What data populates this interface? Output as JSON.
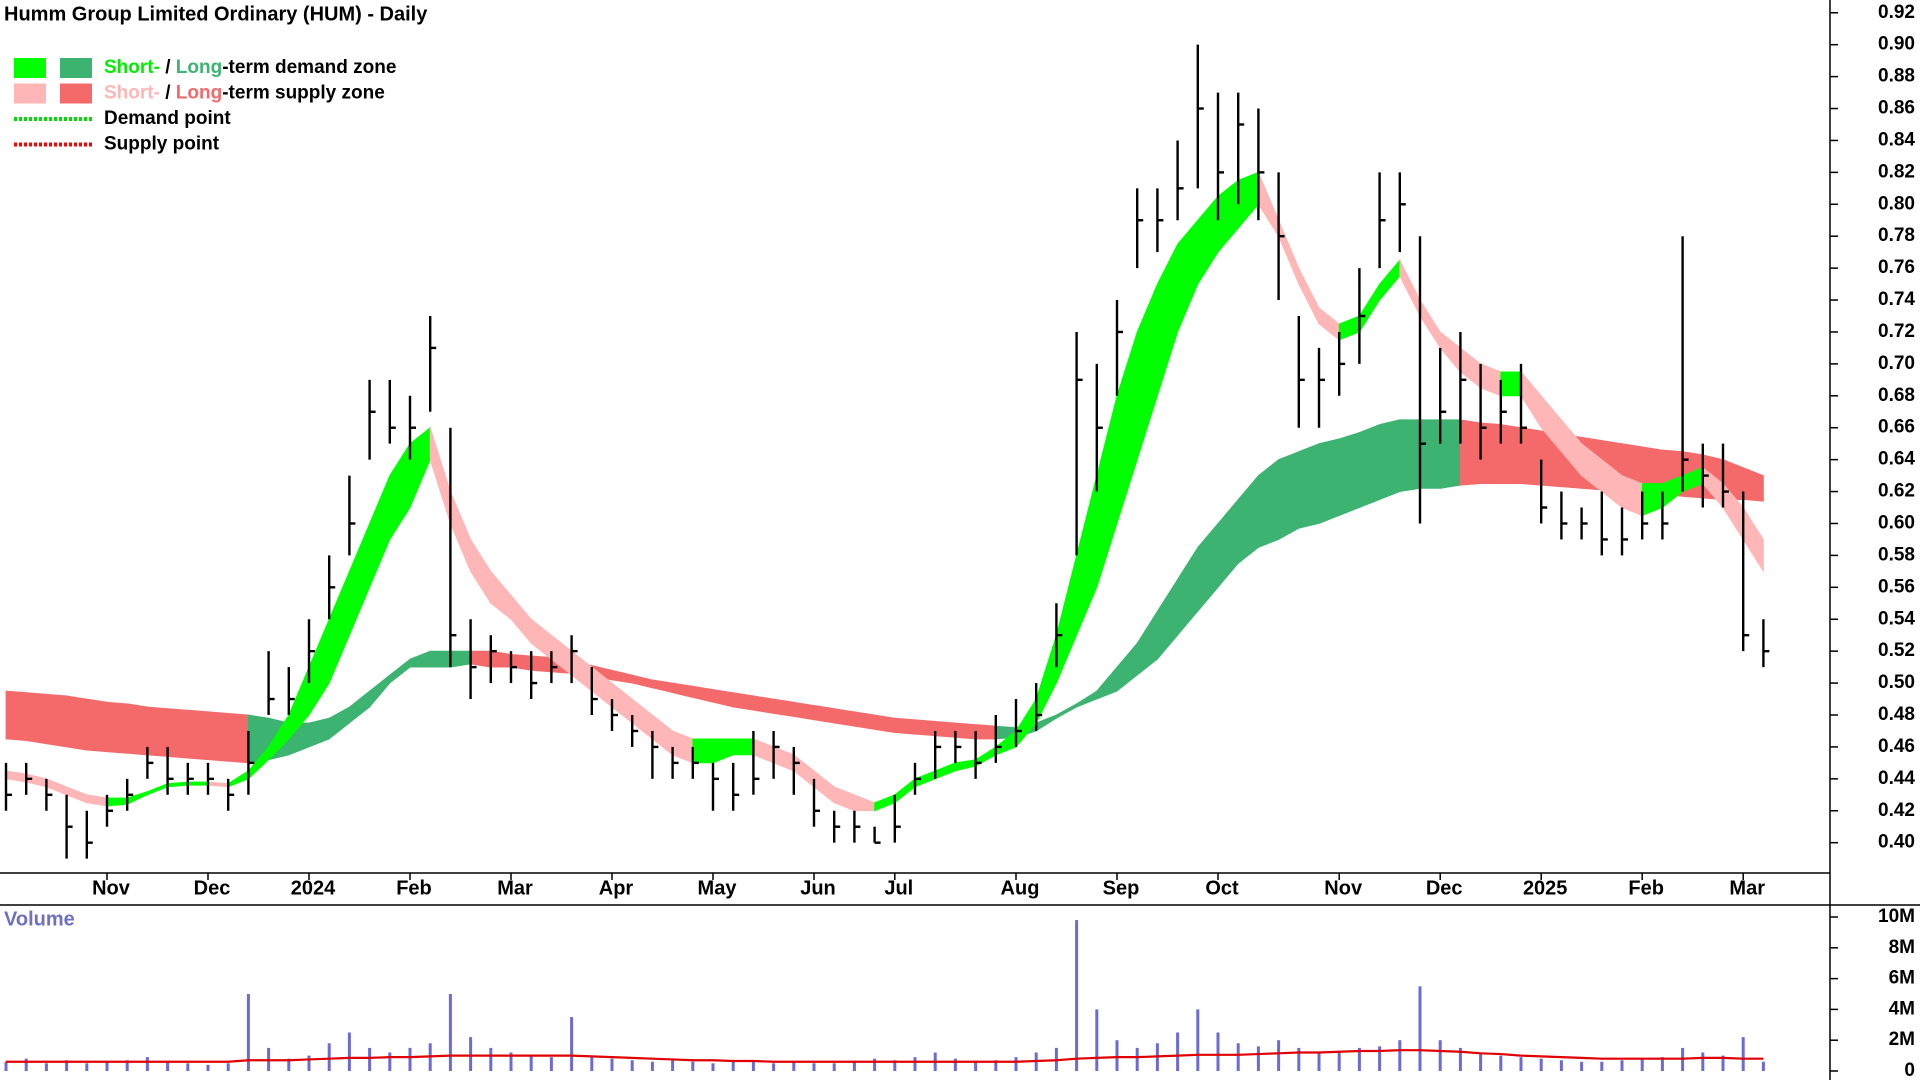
{
  "chart_data": {
    "type": "ohlc",
    "title": "Humm Group Limited Ordinary (HUM) - Daily",
    "categories": [
      null,
      null,
      null,
      null,
      null,
      "Nov",
      null,
      null,
      null,
      null,
      "Dec",
      null,
      null,
      null,
      null,
      "2024",
      null,
      null,
      null,
      null,
      "Feb",
      null,
      null,
      null,
      null,
      "Mar",
      null,
      null,
      null,
      null,
      "Apr",
      null,
      null,
      null,
      null,
      "May",
      null,
      null,
      null,
      null,
      "Jun",
      null,
      null,
      null,
      "Jul",
      null,
      null,
      null,
      null,
      null,
      "Aug",
      null,
      null,
      null,
      null,
      "Sep",
      null,
      null,
      null,
      null,
      "Oct",
      null,
      null,
      null,
      null,
      null,
      "Nov",
      null,
      null,
      null,
      null,
      "Dec",
      null,
      null,
      null,
      null,
      "2025",
      null,
      null,
      null,
      null,
      "Feb",
      null,
      null,
      null,
      null,
      "Mar",
      null
    ],
    "price": {
      "color": "#000000",
      "high": [
        0.45,
        0.45,
        0.44,
        0.43,
        0.42,
        0.43,
        0.44,
        0.46,
        0.46,
        0.45,
        0.45,
        0.44,
        0.47,
        0.52,
        0.51,
        0.54,
        0.58,
        0.63,
        0.69,
        0.69,
        0.68,
        0.73,
        0.66,
        0.54,
        0.53,
        0.52,
        0.52,
        0.52,
        0.53,
        0.51,
        0.49,
        0.48,
        0.47,
        0.46,
        0.46,
        0.45,
        0.45,
        0.47,
        0.47,
        0.46,
        0.44,
        0.42,
        0.42,
        0.41,
        0.43,
        0.45,
        0.47,
        0.47,
        0.47,
        0.48,
        0.49,
        0.5,
        0.55,
        0.72,
        0.7,
        0.74,
        0.81,
        0.81,
        0.84,
        0.9,
        0.87,
        0.87,
        0.86,
        0.82,
        0.73,
        0.71,
        0.72,
        0.76,
        0.82,
        0.82,
        0.78,
        0.71,
        0.72,
        0.7,
        0.69,
        0.7,
        0.64,
        0.62,
        0.61,
        0.62,
        0.61,
        0.62,
        0.62,
        0.78,
        0.65,
        0.65,
        0.62,
        0.54
      ],
      "low": [
        0.42,
        0.43,
        0.42,
        0.39,
        0.39,
        0.41,
        0.42,
        0.44,
        0.43,
        0.43,
        0.43,
        0.42,
        0.43,
        0.48,
        0.48,
        0.5,
        0.54,
        0.58,
        0.64,
        0.65,
        0.64,
        0.67,
        0.51,
        0.49,
        0.5,
        0.5,
        0.49,
        0.5,
        0.5,
        0.48,
        0.47,
        0.46,
        0.44,
        0.44,
        0.44,
        0.42,
        0.42,
        0.43,
        0.44,
        0.43,
        0.41,
        0.4,
        0.4,
        0.4,
        0.4,
        0.43,
        0.44,
        0.45,
        0.44,
        0.45,
        0.46,
        0.47,
        0.51,
        0.58,
        0.62,
        0.68,
        0.76,
        0.77,
        0.79,
        0.81,
        0.79,
        0.8,
        0.79,
        0.74,
        0.66,
        0.66,
        0.68,
        0.7,
        0.76,
        0.77,
        0.6,
        0.65,
        0.65,
        0.64,
        0.65,
        0.65,
        0.6,
        0.59,
        0.59,
        0.58,
        0.58,
        0.59,
        0.59,
        0.62,
        0.61,
        0.61,
        0.52,
        0.51
      ],
      "close": [
        0.43,
        0.44,
        0.43,
        0.41,
        0.4,
        0.42,
        0.43,
        0.45,
        0.44,
        0.44,
        0.44,
        0.43,
        0.45,
        0.49,
        0.49,
        0.52,
        0.56,
        0.6,
        0.67,
        0.66,
        0.66,
        0.71,
        0.53,
        0.51,
        0.52,
        0.51,
        0.5,
        0.51,
        0.52,
        0.49,
        0.48,
        0.47,
        0.46,
        0.45,
        0.45,
        0.44,
        0.43,
        0.44,
        0.46,
        0.45,
        0.42,
        0.41,
        0.41,
        0.4,
        0.41,
        0.44,
        0.46,
        0.46,
        0.45,
        0.46,
        0.47,
        0.48,
        0.53,
        0.69,
        0.66,
        0.72,
        0.79,
        0.79,
        0.81,
        0.86,
        0.82,
        0.85,
        0.82,
        0.78,
        0.69,
        0.69,
        0.7,
        0.73,
        0.79,
        0.8,
        0.65,
        0.67,
        0.69,
        0.66,
        0.67,
        0.66,
        0.61,
        0.6,
        0.6,
        0.59,
        0.59,
        0.6,
        0.6,
        0.64,
        0.63,
        0.62,
        0.53,
        0.52
      ]
    },
    "short_term_zone": {
      "demand_color": "#00ff00",
      "supply_color": "#ffb6b6",
      "upper": [
        0.445,
        0.443,
        0.44,
        0.435,
        0.43,
        0.428,
        0.428,
        0.432,
        0.437,
        0.438,
        0.438,
        0.437,
        0.445,
        0.46,
        0.48,
        0.51,
        0.54,
        0.57,
        0.6,
        0.63,
        0.65,
        0.66,
        0.62,
        0.59,
        0.57,
        0.555,
        0.54,
        0.53,
        0.52,
        0.51,
        0.5,
        0.49,
        0.48,
        0.47,
        0.465,
        0.465,
        0.465,
        0.465,
        0.46,
        0.455,
        0.445,
        0.435,
        0.43,
        0.425,
        0.43,
        0.44,
        0.445,
        0.45,
        0.452,
        0.46,
        0.47,
        0.49,
        0.53,
        0.58,
        0.63,
        0.68,
        0.72,
        0.75,
        0.775,
        0.79,
        0.805,
        0.815,
        0.82,
        0.79,
        0.76,
        0.735,
        0.725,
        0.73,
        0.75,
        0.765,
        0.74,
        0.72,
        0.71,
        0.7,
        0.695,
        0.695,
        0.68,
        0.665,
        0.65,
        0.64,
        0.63,
        0.625,
        0.625,
        0.63,
        0.635,
        0.625,
        0.61,
        0.59
      ],
      "lower": [
        0.44,
        0.438,
        0.435,
        0.43,
        0.425,
        0.423,
        0.424,
        0.43,
        0.435,
        0.436,
        0.436,
        0.435,
        0.44,
        0.452,
        0.465,
        0.48,
        0.5,
        0.53,
        0.56,
        0.59,
        0.61,
        0.64,
        0.6,
        0.57,
        0.55,
        0.54,
        0.525,
        0.515,
        0.505,
        0.495,
        0.485,
        0.475,
        0.465,
        0.455,
        0.45,
        0.45,
        0.455,
        0.455,
        0.45,
        0.445,
        0.435,
        0.425,
        0.42,
        0.42,
        0.425,
        0.435,
        0.44,
        0.445,
        0.448,
        0.455,
        0.46,
        0.475,
        0.5,
        0.53,
        0.56,
        0.6,
        0.64,
        0.68,
        0.72,
        0.75,
        0.77,
        0.785,
        0.8,
        0.78,
        0.75,
        0.725,
        0.715,
        0.72,
        0.74,
        0.755,
        0.73,
        0.71,
        0.695,
        0.685,
        0.68,
        0.68,
        0.66,
        0.645,
        0.63,
        0.62,
        0.61,
        0.605,
        0.61,
        0.62,
        0.625,
        0.61,
        0.59,
        0.57
      ]
    },
    "long_term_zone": {
      "demand_color": "#3cb371",
      "supply_color": "#f46a6a",
      "upper": [
        0.495,
        0.494,
        0.493,
        0.492,
        0.49,
        0.488,
        0.487,
        0.485,
        0.484,
        0.483,
        0.482,
        0.481,
        0.48,
        0.478,
        0.475,
        0.475,
        0.478,
        0.485,
        0.495,
        0.505,
        0.515,
        0.52,
        0.52,
        0.52,
        0.52,
        0.518,
        0.517,
        0.516,
        0.514,
        0.511,
        0.508,
        0.505,
        0.502,
        0.5,
        0.498,
        0.496,
        0.494,
        0.492,
        0.49,
        0.488,
        0.486,
        0.484,
        0.482,
        0.48,
        0.478,
        0.477,
        0.476,
        0.475,
        0.474,
        0.473,
        0.472,
        0.475,
        0.48,
        0.487,
        0.495,
        0.51,
        0.525,
        0.545,
        0.565,
        0.585,
        0.6,
        0.615,
        0.63,
        0.64,
        0.645,
        0.65,
        0.653,
        0.657,
        0.662,
        0.665,
        0.665,
        0.665,
        0.665,
        0.663,
        0.662,
        0.66,
        0.658,
        0.656,
        0.654,
        0.652,
        0.65,
        0.648,
        0.646,
        0.645,
        0.643,
        0.64,
        0.635,
        0.63
      ],
      "lower": [
        0.465,
        0.464,
        0.462,
        0.46,
        0.458,
        0.457,
        0.456,
        0.455,
        0.454,
        0.453,
        0.452,
        0.451,
        0.45,
        0.452,
        0.455,
        0.46,
        0.465,
        0.475,
        0.485,
        0.5,
        0.51,
        0.51,
        0.51,
        0.512,
        0.51,
        0.51,
        0.508,
        0.507,
        0.506,
        0.504,
        0.502,
        0.5,
        0.497,
        0.494,
        0.491,
        0.488,
        0.485,
        0.483,
        0.481,
        0.479,
        0.477,
        0.475,
        0.473,
        0.471,
        0.469,
        0.468,
        0.467,
        0.466,
        0.465,
        0.465,
        0.466,
        0.47,
        0.478,
        0.485,
        0.49,
        0.495,
        0.505,
        0.515,
        0.53,
        0.545,
        0.56,
        0.575,
        0.585,
        0.59,
        0.597,
        0.6,
        0.605,
        0.61,
        0.615,
        0.62,
        0.622,
        0.622,
        0.624,
        0.625,
        0.625,
        0.625,
        0.624,
        0.623,
        0.622,
        0.621,
        0.62,
        0.619,
        0.618,
        0.617,
        0.616,
        0.615,
        0.615,
        0.614
      ]
    },
    "ylim": [
      0.381,
      0.928
    ],
    "yticks": [
      {
        "value": 0.4,
        "label": "0.40"
      },
      {
        "value": 0.42,
        "label": "0.42"
      },
      {
        "value": 0.44,
        "label": "0.44"
      },
      {
        "value": 0.46,
        "label": "0.46"
      },
      {
        "value": 0.48,
        "label": "0.48"
      },
      {
        "value": 0.5,
        "label": "0.50"
      },
      {
        "value": 0.52,
        "label": "0.52"
      },
      {
        "value": 0.54,
        "label": "0.54"
      },
      {
        "value": 0.56,
        "label": "0.56"
      },
      {
        "value": 0.58,
        "label": "0.58"
      },
      {
        "value": 0.6,
        "label": "0.60"
      },
      {
        "value": 0.62,
        "label": "0.62"
      },
      {
        "value": 0.64,
        "label": "0.64"
      },
      {
        "value": 0.66,
        "label": "0.66"
      },
      {
        "value": 0.68,
        "label": "0.68"
      },
      {
        "value": 0.7,
        "label": "0.70"
      },
      {
        "value": 0.72,
        "label": "0.72"
      },
      {
        "value": 0.74,
        "label": "0.74"
      },
      {
        "value": 0.76,
        "label": "0.76"
      },
      {
        "value": 0.78,
        "label": "0.78"
      },
      {
        "value": 0.8,
        "label": "0.80"
      },
      {
        "value": 0.82,
        "label": "0.82"
      },
      {
        "value": 0.84,
        "label": "0.84"
      },
      {
        "value": 0.86,
        "label": "0.86"
      },
      {
        "value": 0.88,
        "label": "0.88"
      },
      {
        "value": 0.9,
        "label": "0.90"
      },
      {
        "value": 0.92,
        "label": "0.92"
      }
    ],
    "legend": [
      {
        "swatches": [
          "#00ff00",
          "#3cb371"
        ],
        "parts": [
          {
            "text": "Short-",
            "color": "#00ee00"
          },
          {
            "text": " / "
          },
          {
            "text": "Long",
            "color": "#3cb371"
          },
          {
            "text": "-term demand zone"
          }
        ]
      },
      {
        "swatches": [
          "#ffb6b6",
          "#f46a6a"
        ],
        "parts": [
          {
            "text": "Short-",
            "color": "#ffb6b6"
          },
          {
            "text": " / "
          },
          {
            "text": "Long",
            "color": "#f46a6a"
          },
          {
            "text": "-term supply zone"
          }
        ]
      },
      {
        "line": "#00dd00",
        "parts": [
          {
            "text": "Demand point"
          }
        ]
      },
      {
        "line": "#ff0000",
        "parts": [
          {
            "text": "Supply point"
          }
        ]
      }
    ],
    "volume": {
      "label": "Volume",
      "color": "#6b6bd6",
      "average_color": "#e00000",
      "values": [
        600000,
        800000,
        500000,
        700000,
        500000,
        600000,
        700000,
        900000,
        600000,
        500000,
        400000,
        500000,
        5000000,
        1500000,
        800000,
        1000000,
        1800000,
        2500000,
        1500000,
        1200000,
        1500000,
        1800000,
        5000000,
        2200000,
        1500000,
        1200000,
        1000000,
        900000,
        3500000,
        1000000,
        800000,
        700000,
        600000,
        700000,
        600000,
        500000,
        600000,
        700000,
        500000,
        600000,
        500000,
        500000,
        600000,
        800000,
        700000,
        900000,
        1200000,
        800000,
        600000,
        700000,
        900000,
        1200000,
        1500000,
        9800000,
        4000000,
        2000000,
        1500000,
        1800000,
        2500000,
        4000000,
        2500000,
        1800000,
        1600000,
        2000000,
        1500000,
        1200000,
        1300000,
        1500000,
        1600000,
        2000000,
        5500000,
        2000000,
        1500000,
        1200000,
        1000000,
        900000,
        800000,
        700000,
        600000,
        600000,
        700000,
        800000,
        900000,
        1500000,
        1200000,
        1000000,
        2200000,
        600000
      ],
      "average": [
        600000,
        600000,
        600000,
        600000,
        600000,
        600000,
        600000,
        600000,
        600000,
        600000,
        600000,
        600000,
        700000,
        700000,
        700000,
        750000,
        800000,
        850000,
        850000,
        900000,
        900000,
        950000,
        1000000,
        1000000,
        1000000,
        1000000,
        1000000,
        1000000,
        1000000,
        950000,
        900000,
        850000,
        800000,
        750000,
        700000,
        700000,
        650000,
        650000,
        600000,
        600000,
        600000,
        600000,
        600000,
        600000,
        600000,
        600000,
        600000,
        600000,
        600000,
        600000,
        600000,
        650000,
        700000,
        800000,
        850000,
        900000,
        900000,
        950000,
        1000000,
        1050000,
        1050000,
        1050000,
        1100000,
        1150000,
        1200000,
        1200000,
        1250000,
        1300000,
        1300000,
        1350000,
        1350000,
        1300000,
        1250000,
        1150000,
        1100000,
        1000000,
        950000,
        900000,
        850000,
        800000,
        800000,
        800000,
        800000,
        800000,
        850000,
        850000,
        800000,
        800000
      ],
      "ylim": [
        0,
        10780000
      ],
      "yticks": [
        0,
        {
          "value": 2000000,
          "label": "2M"
        },
        {
          "value": 4000000,
          "label": "4M"
        },
        {
          "value": 6000000,
          "label": "6M"
        },
        {
          "value": 8000000,
          "label": "8M"
        },
        {
          "value": 10000000,
          "label": "10M"
        }
      ]
    }
  }
}
